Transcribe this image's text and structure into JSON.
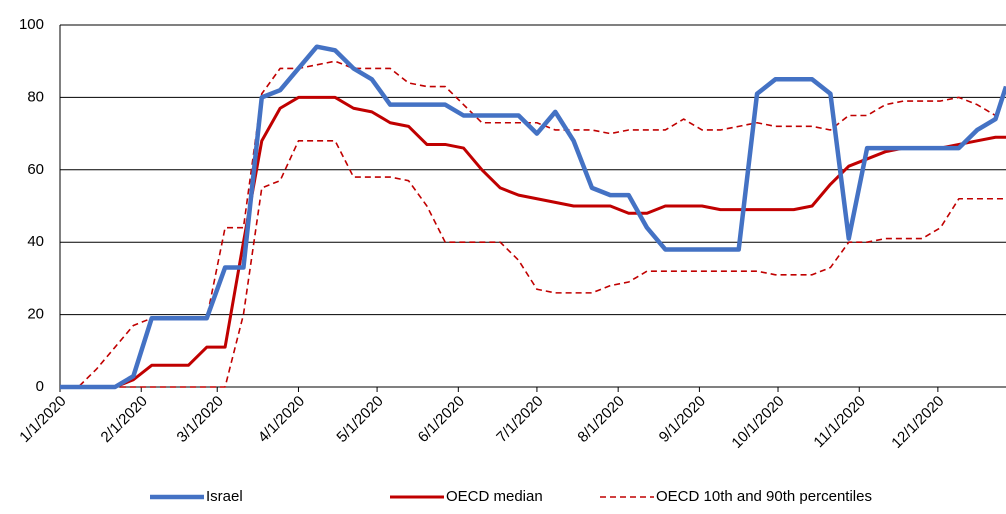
{
  "chart_data": {
    "type": "line",
    "x": [
      "1/1/2020",
      "1/8/2020",
      "1/15/2020",
      "1/22/2020",
      "1/29/2020",
      "2/5/2020",
      "2/12/2020",
      "2/19/2020",
      "2/26/2020",
      "3/4/2020",
      "3/11/2020",
      "3/18/2020",
      "3/25/2020",
      "4/1/2020",
      "4/8/2020",
      "4/15/2020",
      "4/22/2020",
      "4/29/2020",
      "5/6/2020",
      "5/13/2020",
      "5/20/2020",
      "5/27/2020",
      "6/3/2020",
      "6/10/2020",
      "6/17/2020",
      "6/24/2020",
      "7/1/2020",
      "7/8/2020",
      "7/15/2020",
      "7/22/2020",
      "7/29/2020",
      "8/5/2020",
      "8/12/2020",
      "8/19/2020",
      "8/26/2020",
      "9/2/2020",
      "9/9/2020",
      "9/16/2020",
      "9/23/2020",
      "9/30/2020",
      "10/7/2020",
      "10/14/2020",
      "10/21/2020",
      "10/28/2020",
      "11/4/2020",
      "11/11/2020",
      "11/18/2020",
      "11/25/2020",
      "12/2/2020",
      "12/9/2020",
      "12/16/2020",
      "12/23/2020",
      "12/27/2020"
    ],
    "series": [
      {
        "name": "Israel",
        "color": "#4472c4",
        "values": [
          0,
          0,
          0,
          0,
          3,
          19,
          19,
          19,
          19,
          33,
          33,
          80,
          82,
          88,
          94,
          93,
          88,
          85,
          78,
          78,
          78,
          78,
          75,
          75,
          75,
          75,
          70,
          76,
          68,
          55,
          53,
          53,
          44,
          38,
          38,
          38,
          38,
          38,
          81,
          85,
          85,
          85,
          81,
          41,
          66,
          66,
          66,
          66,
          66,
          66,
          71,
          74,
          83
        ]
      },
      {
        "name": "OECD median",
        "color": "#c00000",
        "values": [
          0,
          0,
          0,
          0,
          2,
          6,
          6,
          6,
          11,
          11,
          40,
          68,
          77,
          80,
          80,
          80,
          77,
          76,
          73,
          72,
          67,
          67,
          66,
          60,
          55,
          53,
          52,
          51,
          50,
          50,
          50,
          48,
          48,
          50,
          50,
          50,
          49,
          49,
          49,
          49,
          49,
          50,
          56,
          61,
          63,
          65,
          66,
          66,
          66,
          67,
          68,
          69,
          69
        ]
      },
      {
        "name": "OECD 10th and 90th percentiles",
        "color": "#c00000",
        "dashed": true,
        "values": [
          0,
          0,
          5,
          11,
          17,
          19,
          19,
          19,
          19,
          44,
          44,
          81,
          88,
          88,
          89,
          90,
          88,
          88,
          88,
          84,
          83,
          83,
          78,
          73,
          73,
          73,
          73,
          71,
          71,
          71,
          70,
          71,
          71,
          71,
          74,
          71,
          71,
          72,
          73,
          72,
          72,
          72,
          71,
          75,
          75,
          78,
          79,
          79,
          79,
          80,
          78,
          75,
          83
        ],
        "low": [
          0,
          0,
          0,
          0,
          0,
          0,
          0,
          0,
          0,
          0,
          20,
          55,
          57,
          68,
          68,
          68,
          58,
          58,
          58,
          57,
          50,
          40,
          40,
          40,
          40,
          35,
          27,
          26,
          26,
          26,
          28,
          29,
          32,
          32,
          32,
          32,
          32,
          32,
          32,
          31,
          31,
          31,
          33,
          40,
          40,
          41,
          41,
          41,
          44,
          52,
          52,
          52,
          52
        ]
      }
    ],
    "xlim": [
      "1/1/2020",
      "12/27/2020"
    ],
    "xticks": [
      "1/1/2020",
      "2/1/2020",
      "3/1/2020",
      "4/1/2020",
      "5/1/2020",
      "6/1/2020",
      "7/1/2020",
      "8/1/2020",
      "9/1/2020",
      "10/1/2020",
      "11/1/2020",
      "12/1/2020"
    ],
    "ylim": [
      0,
      100
    ],
    "yticks": [
      0,
      20,
      40,
      60,
      80,
      100
    ],
    "grid": true,
    "legend": "bottom"
  }
}
